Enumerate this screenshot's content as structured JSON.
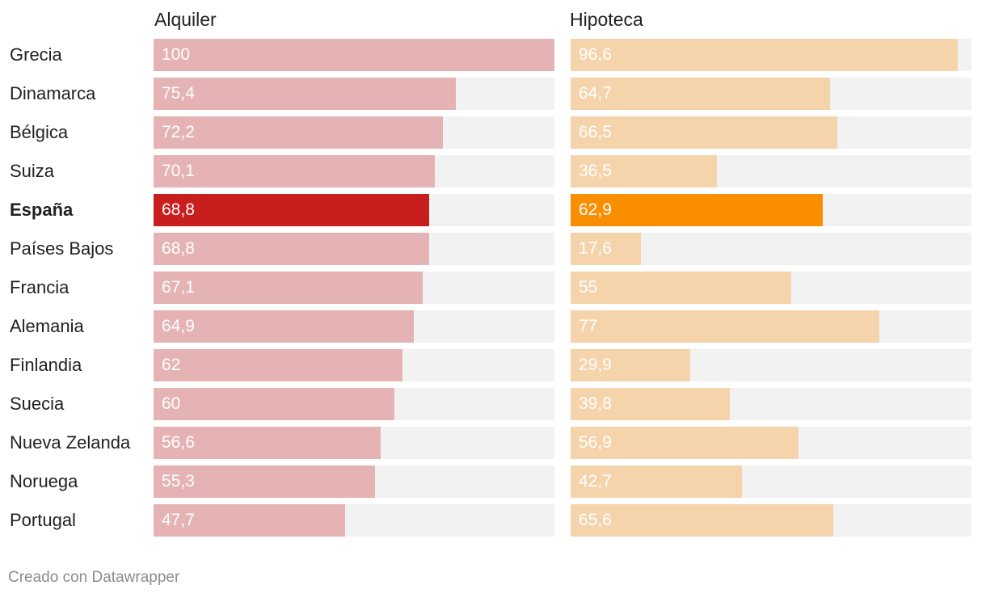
{
  "chart_data": {
    "type": "bar",
    "orientation": "horizontal",
    "categories": [
      "Grecia",
      "Dinamarca",
      "Bélgica",
      "Suiza",
      "España",
      "Países Bajos",
      "Francia",
      "Alemania",
      "Finlandia",
      "Suecia",
      "Nueva Zelanda",
      "Noruega",
      "Portugal"
    ],
    "highlight": "España",
    "series": [
      {
        "name": "Alquiler",
        "values": [
          100,
          75.4,
          72.2,
          70.1,
          68.8,
          68.8,
          67.1,
          64.9,
          62,
          60,
          56.6,
          55.3,
          47.7
        ],
        "labels": [
          "100",
          "75,4",
          "72,2",
          "70,1",
          "68,8",
          "68,8",
          "67,1",
          "64,9",
          "62",
          "60",
          "56,6",
          "55,3",
          "47,7"
        ],
        "color": "#e5b3b3",
        "highlight_color": "#c91e1e",
        "xlim": [
          0,
          100
        ]
      },
      {
        "name": "Hipoteca",
        "values": [
          96.6,
          64.7,
          66.5,
          36.5,
          62.9,
          17.6,
          55,
          77,
          29.9,
          39.8,
          56.9,
          42.7,
          65.6
        ],
        "labels": [
          "96,6",
          "64,7",
          "66,5",
          "36,5",
          "62,9",
          "17,6",
          "55",
          "77",
          "29,9",
          "39,8",
          "56,9",
          "42,7",
          "65,6"
        ],
        "color": "#f5d4ab",
        "highlight_color": "#f98e00",
        "xlim": [
          0,
          100
        ]
      }
    ],
    "track_color": "#f2f2f2"
  },
  "footer": "Creado con Datawrapper"
}
